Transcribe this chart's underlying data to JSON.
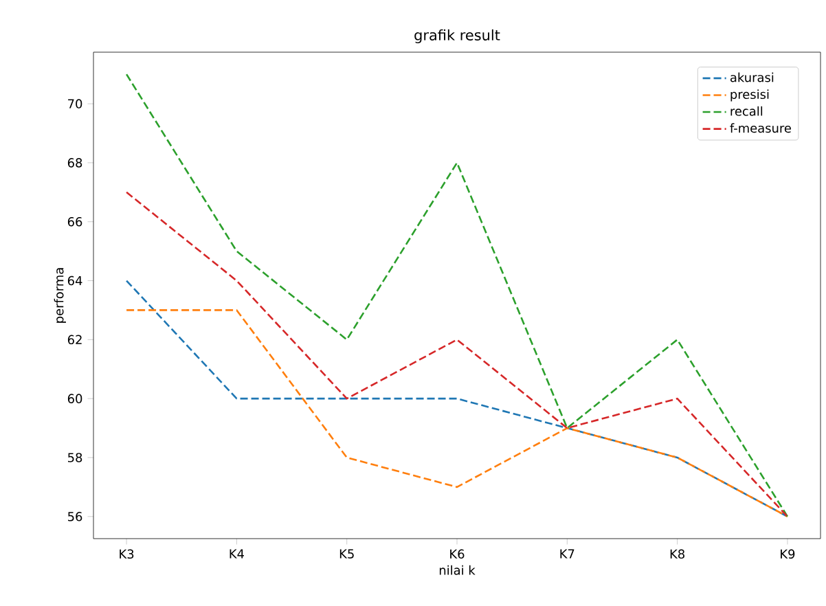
{
  "chart_data": {
    "type": "line",
    "title": "grafik result",
    "xlabel": "nilai k",
    "ylabel": "performa",
    "categories": [
      "K3",
      "K4",
      "K5",
      "K6",
      "K7",
      "K8",
      "K9"
    ],
    "series": [
      {
        "name": "akurasi",
        "color": "#1f77b4",
        "values": [
          64,
          60,
          60,
          60,
          59,
          58,
          56
        ]
      },
      {
        "name": "presisi",
        "color": "#ff7f0e",
        "values": [
          63,
          63,
          58,
          57,
          59,
          58,
          56
        ]
      },
      {
        "name": "recall",
        "color": "#2ca02c",
        "values": [
          71,
          65,
          62,
          68,
          59,
          62,
          56
        ]
      },
      {
        "name": "f-measure",
        "color": "#d62728",
        "values": [
          67,
          64,
          60,
          62,
          59,
          60,
          56
        ]
      }
    ],
    "ylim": [
      55.25,
      71.75
    ],
    "yticks": [
      56,
      58,
      60,
      62,
      64,
      66,
      68,
      70
    ],
    "legend": "top right",
    "line_style": "dashed",
    "marker": "none",
    "grid": false
  }
}
